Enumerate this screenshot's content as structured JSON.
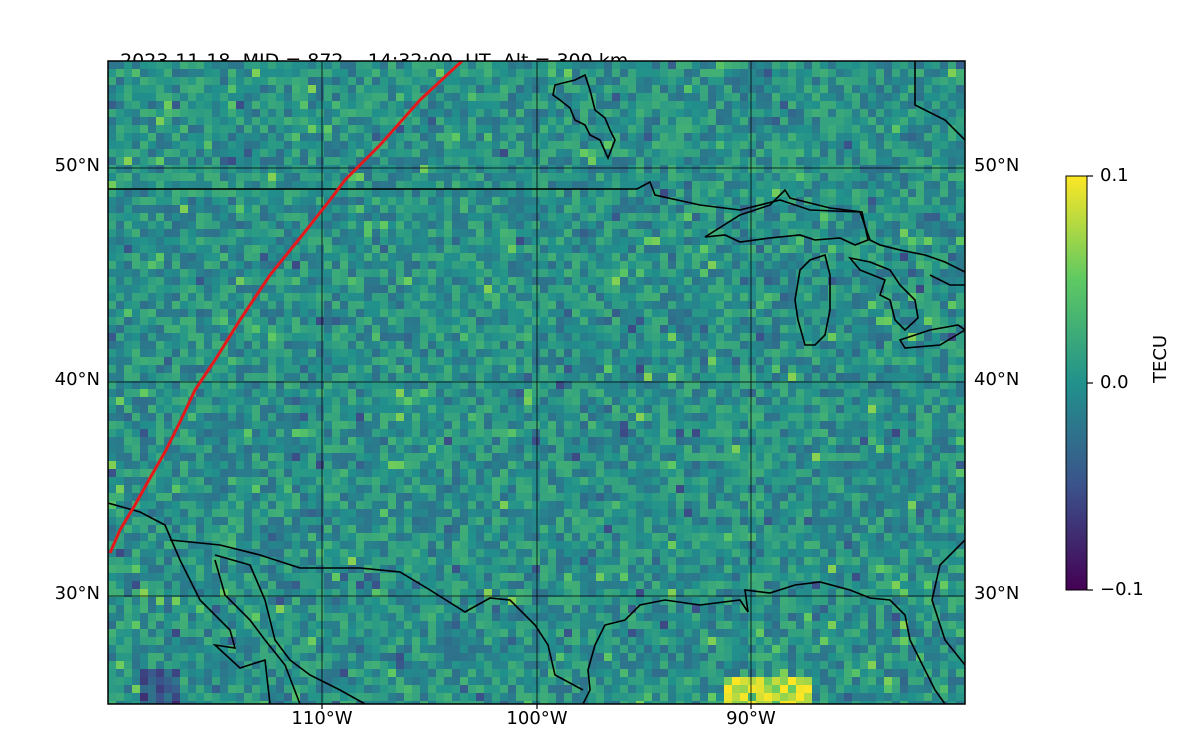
{
  "title": {
    "date": "2023-11-18",
    "mid": "MID = 872",
    "time": "14:32:00  UT",
    "alt": "Alt = 300 km"
  },
  "map": {
    "lat_labels": [
      "50°N",
      "40°N",
      "30°N"
    ],
    "lon_labels": [
      "110°W",
      "100°W",
      "90°W"
    ],
    "lat_range": [
      25,
      55
    ],
    "lon_range": [
      -120,
      -80
    ],
    "grid": true,
    "overlay_line_color": "#e31a1c",
    "coastline_color": "#000000"
  },
  "colorbar": {
    "label": "TECU",
    "ticks": [
      "0.1",
      "0.0",
      "−0.1"
    ],
    "vmin": -0.1,
    "vmax": 0.1,
    "colormap": "viridis",
    "colors": [
      "#440154",
      "#3b528b",
      "#21918c",
      "#5ec962",
      "#fde725"
    ]
  }
}
